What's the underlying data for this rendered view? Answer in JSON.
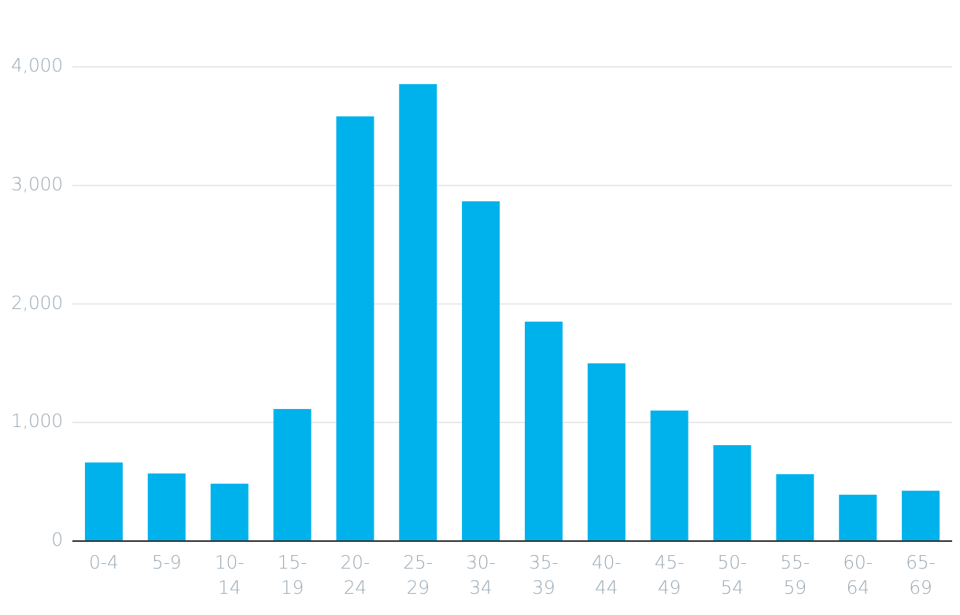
{
  "chart_data": {
    "type": "bar",
    "categories": [
      "0-4",
      "5-9",
      "10-14",
      "15-19",
      "20-24",
      "25-29",
      "30-34",
      "35-39",
      "40-44",
      "45-49",
      "50-54",
      "55-59",
      "60-64",
      "65-69"
    ],
    "values": [
      663,
      570,
      484,
      1114,
      3582,
      3854,
      2866,
      1851,
      1499,
      1101,
      809,
      564,
      391,
      425
    ],
    "color": "#00b2ec",
    "ylim": [
      0,
      4000
    ],
    "yticks": [
      0,
      {
        "value": 1000,
        "label": "1,000"
      },
      {
        "value": 2000,
        "label": "2,000"
      },
      {
        "value": 3000,
        "label": "3,000"
      },
      {
        "value": 4000,
        "label": "4,000"
      }
    ],
    "grid": true
  }
}
